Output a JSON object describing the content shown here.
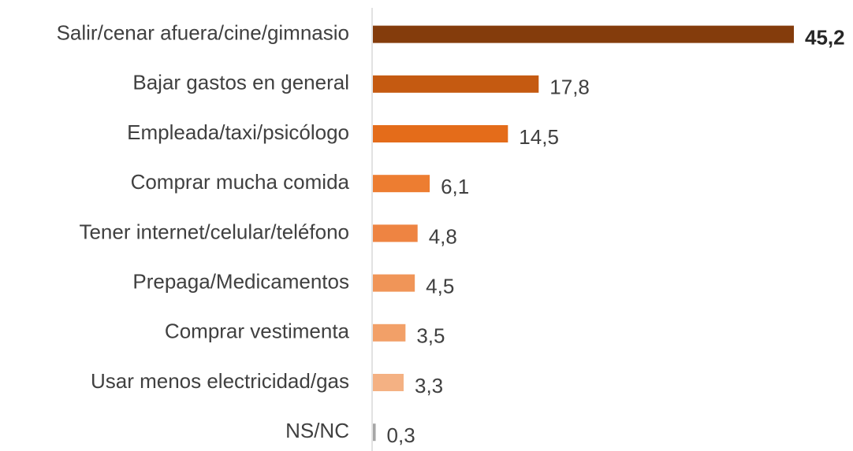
{
  "chart_data": {
    "type": "bar",
    "orientation": "horizontal",
    "categories": [
      "Salir/cenar afuera/cine/gimnasio",
      "Bajar gastos en general",
      "Empleada/taxi/psicólogo",
      "Comprar mucha comida",
      "Tener internet/celular/teléfono",
      "Prepaga/Medicamentos",
      "Comprar vestimenta",
      "Usar menos electricidad/gas",
      "NS/NC"
    ],
    "values": [
      45.2,
      17.8,
      14.5,
      6.1,
      4.8,
      4.5,
      3.5,
      3.3,
      0.3
    ],
    "value_labels": [
      "45,2",
      "17,8",
      "14,5",
      "6,1",
      "4,8",
      "4,5",
      "3,5",
      "3,3",
      "0,3"
    ],
    "colors": [
      "#843c0c",
      "#c55a11",
      "#e46c1a",
      "#ed7d31",
      "#ee8442",
      "#f09558",
      "#f2a068",
      "#f4b183",
      "#a6a6a6"
    ]
  }
}
